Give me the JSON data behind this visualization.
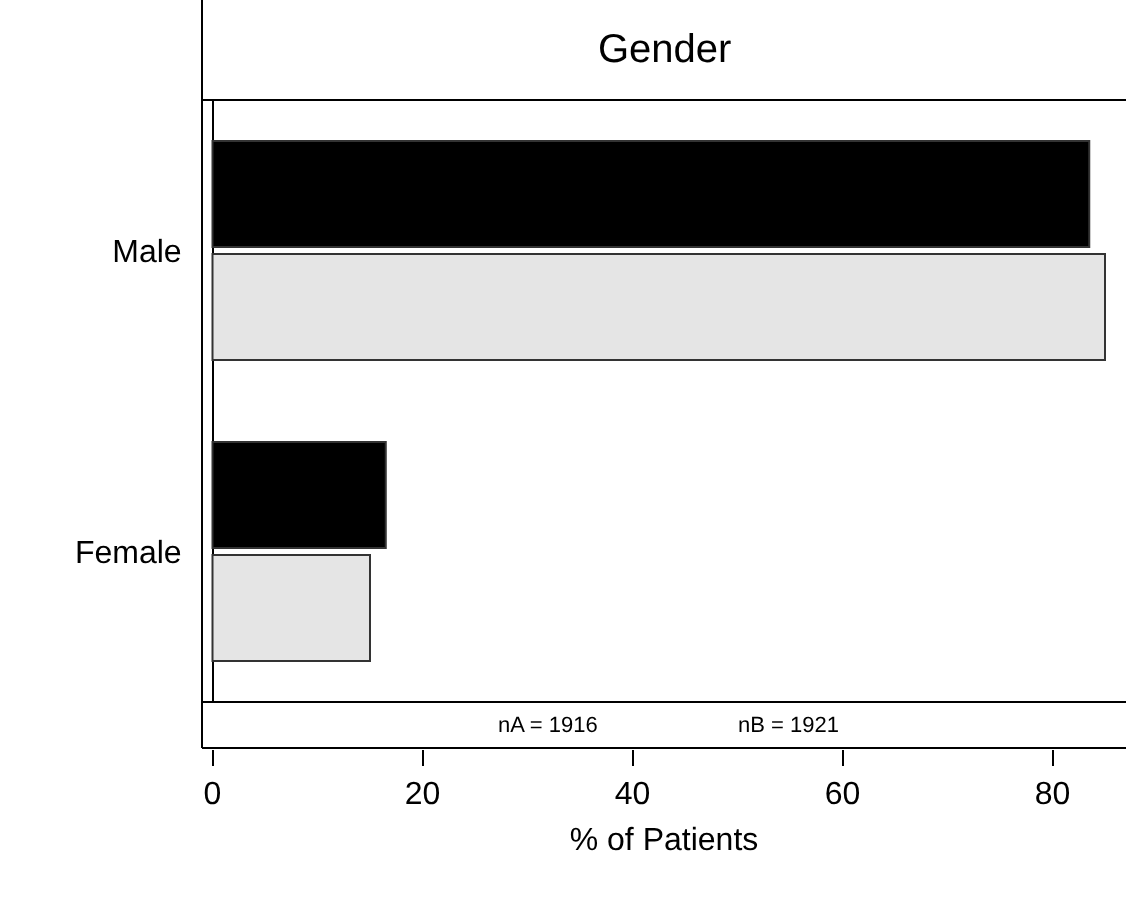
{
  "chart_data": {
    "type": "bar",
    "orientation": "horizontal",
    "title": "Gender",
    "xlabel": "% of Patients",
    "categories": [
      "Male",
      "Female"
    ],
    "series": [
      {
        "color": "#000000",
        "values": [
          83.5,
          16.5
        ]
      },
      {
        "color": "#e5e5e5",
        "values": [
          85,
          15
        ]
      }
    ],
    "xlim": [
      -1,
      87
    ],
    "xticks": [
      0,
      20,
      40,
      60,
      80
    ],
    "legend": false,
    "annotations": [
      "nA = 1916",
      "nB = 1921"
    ]
  }
}
